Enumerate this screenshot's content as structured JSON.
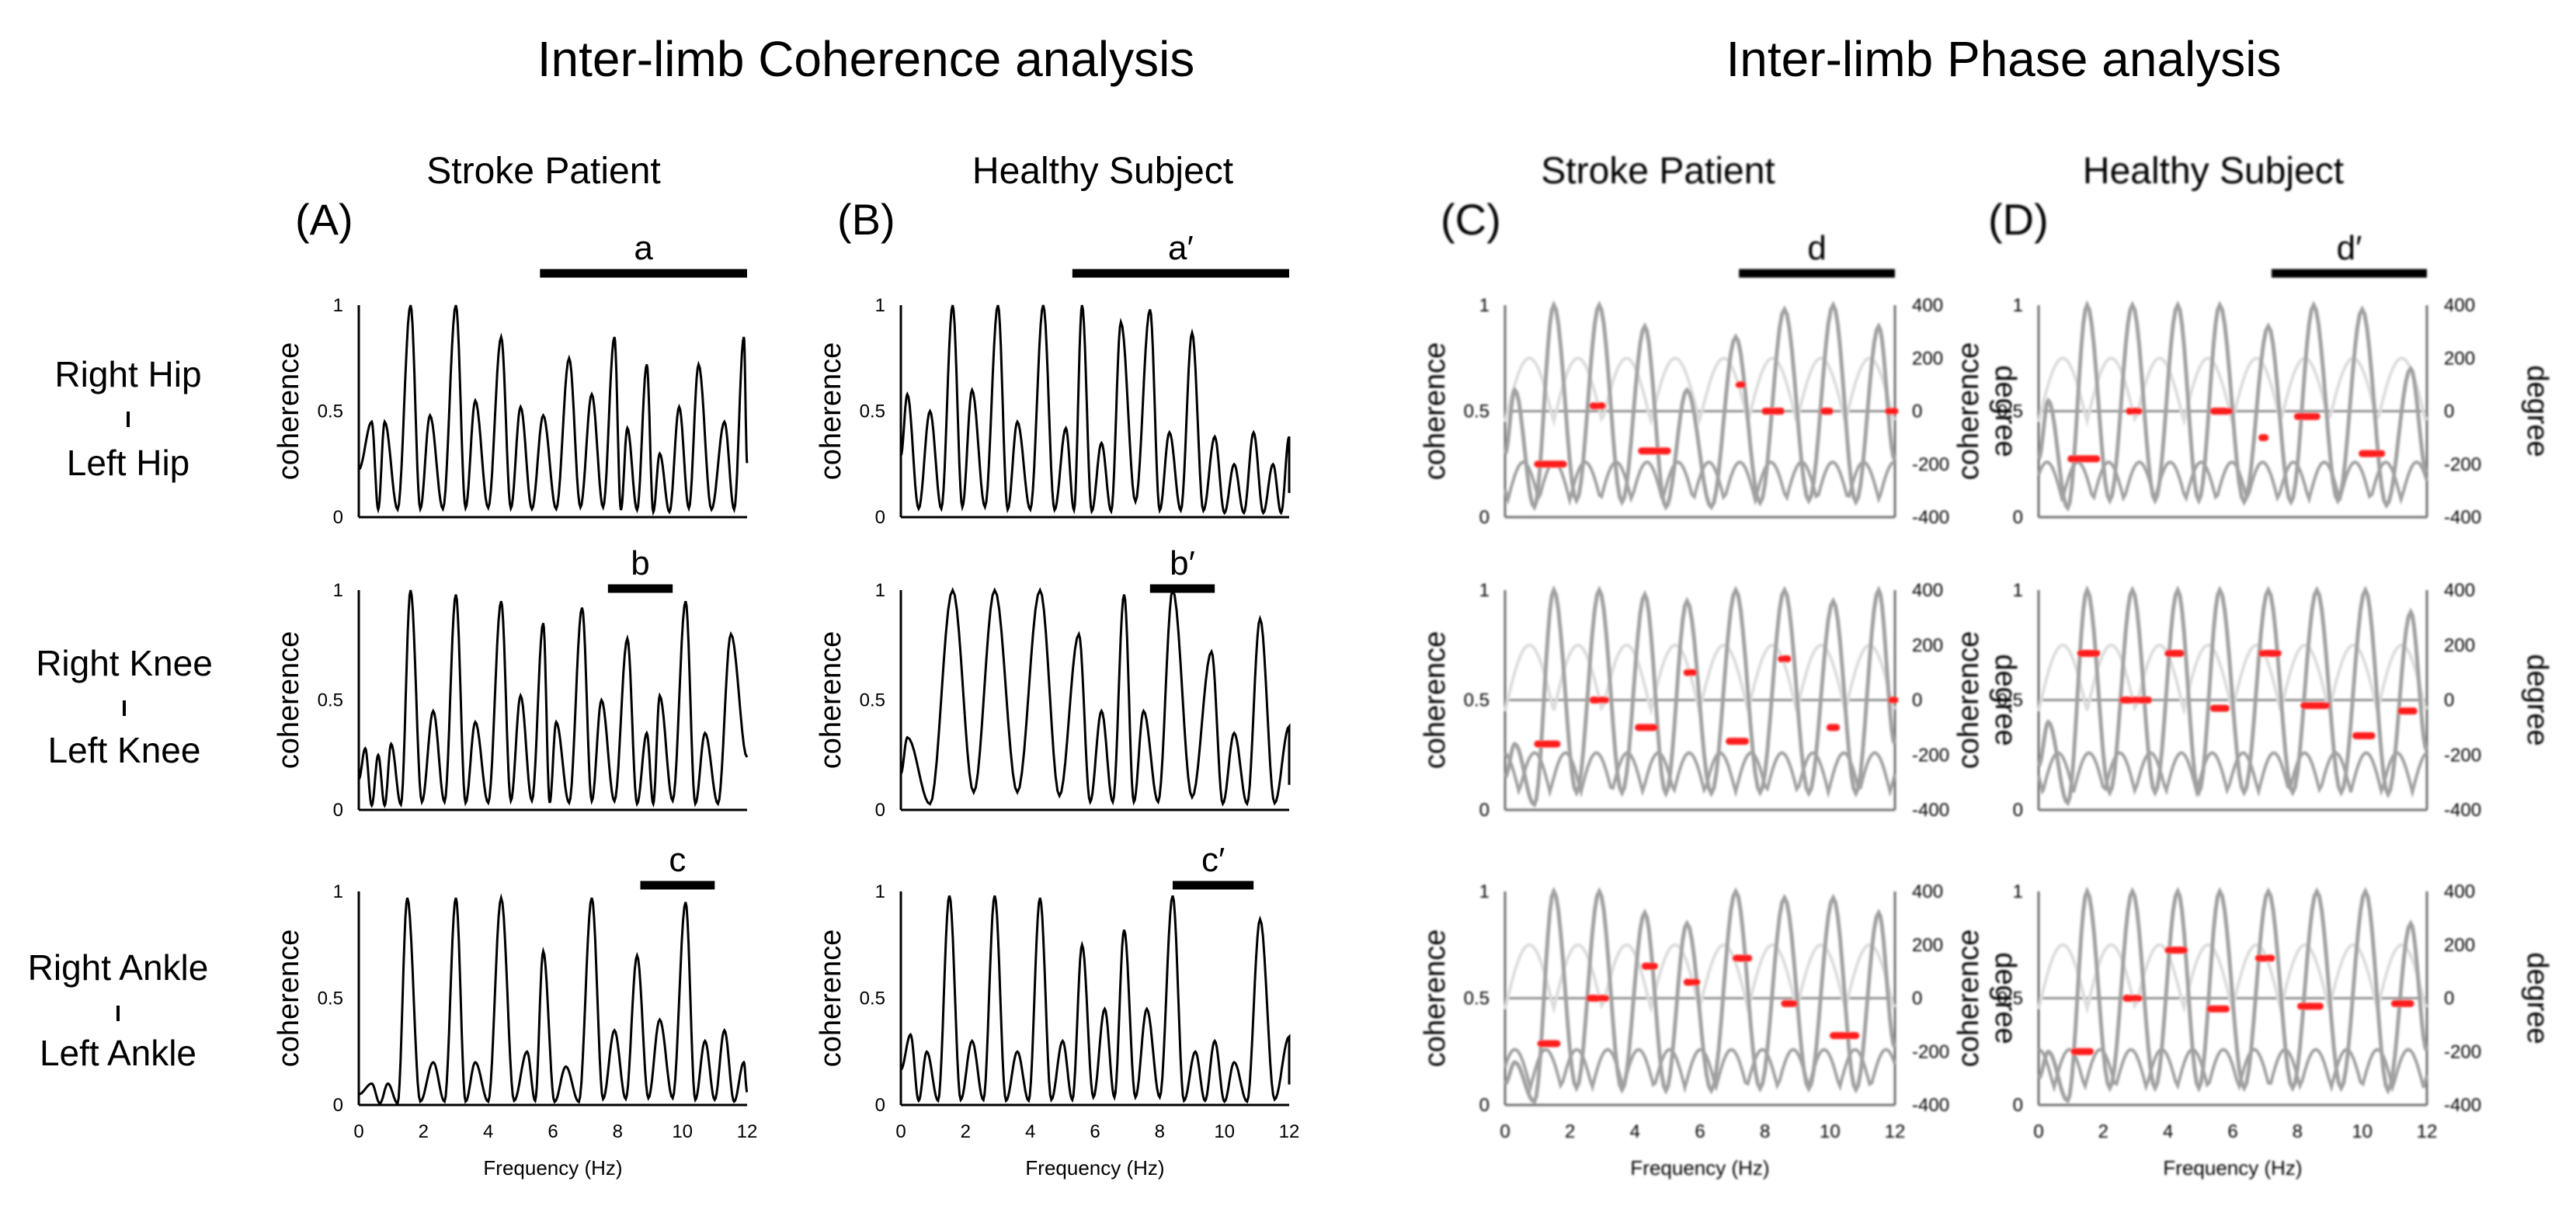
{
  "titles": {
    "left": "Inter-limb Coherence analysis",
    "right": "Inter-limb Phase analysis"
  },
  "columns": [
    {
      "label": "Stroke Patient",
      "panel": "(A)"
    },
    {
      "label": "Healthy  Subject",
      "panel": "(B)"
    },
    {
      "label": "Stroke Patient",
      "panel": "(C)"
    },
    {
      "label": "Healthy  Subject",
      "panel": "(D)"
    }
  ],
  "rows": [
    {
      "top": "Right Hip",
      "bottom": "Left Hip"
    },
    {
      "top": "Right Knee",
      "bottom": "Left Knee"
    },
    {
      "top": "Right Ankle",
      "bottom": "Left Ankle"
    }
  ],
  "axes": {
    "ylabel": "coherence",
    "y2label": "degree",
    "xlabel": "Frequency (Hz)",
    "xticks": [
      "0",
      "2",
      "4",
      "6",
      "8",
      "10",
      "12"
    ],
    "yticks": [
      "0",
      "0.5",
      "1"
    ],
    "y2ticks": [
      "400",
      "200",
      "0",
      "-200",
      "-400"
    ]
  },
  "colors": {
    "coherence_line": "#000000",
    "phase_coherence_line": "#a0a0a0",
    "phase_light_line": "#dcdcdc",
    "phase_segments": "#ff1a1a",
    "reference_line": "#909090"
  },
  "chart_data": {
    "type": "line",
    "xlim": [
      0,
      12
    ],
    "ylim": [
      0,
      1
    ],
    "y2lim": [
      -400,
      400
    ],
    "panels": [
      {
        "id": "A",
        "row": 0,
        "bar": {
          "label": "a",
          "x": [
            5.6,
            12
          ]
        },
        "peaks": [
          [
            0.4,
            0.45
          ],
          [
            0.8,
            0.45
          ],
          [
            1.6,
            1.0
          ],
          [
            2.2,
            0.48
          ],
          [
            3.0,
            1.0
          ],
          [
            3.6,
            0.55
          ],
          [
            4.4,
            0.85
          ],
          [
            5.0,
            0.52
          ],
          [
            5.7,
            0.48
          ],
          [
            6.5,
            0.75
          ],
          [
            7.2,
            0.58
          ],
          [
            7.9,
            0.85
          ],
          [
            8.3,
            0.42
          ],
          [
            8.9,
            0.72
          ],
          [
            9.3,
            0.3
          ],
          [
            9.9,
            0.52
          ],
          [
            10.5,
            0.72
          ],
          [
            11.3,
            0.45
          ],
          [
            11.9,
            0.85
          ]
        ]
      },
      {
        "id": "B",
        "row": 0,
        "bar": {
          "label": "a'",
          "x": [
            5.3,
            12
          ]
        },
        "peaks": [
          [
            0.2,
            0.58
          ],
          [
            0.9,
            0.5
          ],
          [
            1.6,
            1.0
          ],
          [
            2.2,
            0.6
          ],
          [
            3.0,
            1.0
          ],
          [
            3.6,
            0.45
          ],
          [
            4.4,
            1.0
          ],
          [
            5.1,
            0.42
          ],
          [
            5.6,
            1.0
          ],
          [
            6.2,
            0.35
          ],
          [
            6.8,
            0.92
          ],
          [
            7.7,
            0.98
          ],
          [
            8.3,
            0.4
          ],
          [
            9.0,
            0.87
          ],
          [
            9.7,
            0.38
          ],
          [
            10.3,
            0.25
          ],
          [
            10.9,
            0.4
          ],
          [
            11.5,
            0.25
          ],
          [
            12,
            0.38
          ]
        ]
      },
      {
        "id": "A",
        "row": 1,
        "bar": {
          "label": "b",
          "x": [
            7.7,
            9.7
          ]
        },
        "peaks": [
          [
            0.2,
            0.28
          ],
          [
            0.6,
            0.25
          ],
          [
            1.0,
            0.3
          ],
          [
            1.6,
            1.0
          ],
          [
            2.3,
            0.45
          ],
          [
            3.0,
            0.98
          ],
          [
            3.6,
            0.4
          ],
          [
            4.4,
            0.95
          ],
          [
            5.0,
            0.52
          ],
          [
            5.7,
            0.85
          ],
          [
            6.1,
            0.4
          ],
          [
            6.9,
            0.92
          ],
          [
            7.5,
            0.5
          ],
          [
            8.3,
            0.78
          ],
          [
            8.9,
            0.35
          ],
          [
            9.3,
            0.52
          ],
          [
            10.1,
            0.95
          ],
          [
            10.7,
            0.35
          ],
          [
            11.5,
            0.8
          ]
        ]
      },
      {
        "id": "B",
        "row": 1,
        "bar": {
          "label": "b'",
          "x": [
            7.7,
            9.7
          ]
        },
        "peaks": [
          [
            0.2,
            0.33
          ],
          [
            1.6,
            1.0
          ],
          [
            2.9,
            1.0
          ],
          [
            4.3,
            1.0
          ],
          [
            5.5,
            0.8
          ],
          [
            6.2,
            0.45
          ],
          [
            6.9,
            0.98
          ],
          [
            7.5,
            0.45
          ],
          [
            8.4,
            1.0
          ],
          [
            9.6,
            0.72
          ],
          [
            10.3,
            0.35
          ],
          [
            11.1,
            0.87
          ],
          [
            12,
            0.38
          ]
        ]
      },
      {
        "id": "A",
        "row": 2,
        "bar": {
          "label": "c",
          "x": [
            8.7,
            11
          ]
        },
        "peaks": [
          [
            0.4,
            0.1
          ],
          [
            0.9,
            0.1
          ],
          [
            1.5,
            0.97
          ],
          [
            2.3,
            0.2
          ],
          [
            3.0,
            0.97
          ],
          [
            3.6,
            0.2
          ],
          [
            4.4,
            0.97
          ],
          [
            5.2,
            0.25
          ],
          [
            5.7,
            0.72
          ],
          [
            6.4,
            0.18
          ],
          [
            7.2,
            0.97
          ],
          [
            7.9,
            0.35
          ],
          [
            8.6,
            0.7
          ],
          [
            9.3,
            0.4
          ],
          [
            10.1,
            0.95
          ],
          [
            10.7,
            0.3
          ],
          [
            11.3,
            0.35
          ],
          [
            11.9,
            0.2
          ]
        ]
      },
      {
        "id": "B",
        "row": 2,
        "bar": {
          "label": "c'",
          "x": [
            8.4,
            10.9
          ]
        },
        "peaks": [
          [
            0.3,
            0.33
          ],
          [
            0.8,
            0.25
          ],
          [
            1.5,
            0.98
          ],
          [
            2.2,
            0.3
          ],
          [
            2.9,
            0.98
          ],
          [
            3.6,
            0.25
          ],
          [
            4.3,
            0.97
          ],
          [
            5.0,
            0.3
          ],
          [
            5.6,
            0.75
          ],
          [
            6.3,
            0.45
          ],
          [
            6.9,
            0.82
          ],
          [
            7.6,
            0.45
          ],
          [
            8.4,
            0.98
          ],
          [
            9.1,
            0.25
          ],
          [
            9.7,
            0.3
          ],
          [
            10.3,
            0.2
          ],
          [
            11.1,
            0.87
          ],
          [
            12,
            0.32
          ]
        ]
      },
      {
        "id": "C",
        "row": 0,
        "bar": {
          "label": "d",
          "x": [
            7.2,
            12
          ]
        },
        "peaks": [
          [
            0.3,
            0.6
          ],
          [
            1.5,
            1.0
          ],
          [
            2.9,
            1.0
          ],
          [
            4.3,
            0.9
          ],
          [
            5.6,
            0.6
          ],
          [
            7.1,
            0.85
          ],
          [
            8.6,
            0.98
          ],
          [
            10.1,
            1.0
          ],
          [
            11.5,
            0.9
          ]
        ],
        "phase_segments": [
          [
            1.0,
            1.8,
            -200
          ],
          [
            2.7,
            3.0,
            20
          ],
          [
            4.2,
            5.0,
            -150
          ],
          [
            7.2,
            7.3,
            100
          ],
          [
            8.0,
            8.5,
            0
          ],
          [
            9.8,
            10.0,
            0
          ],
          [
            11.8,
            12,
            0
          ]
        ]
      },
      {
        "id": "D",
        "row": 0,
        "bar": {
          "label": "d'",
          "x": [
            7.2,
            12
          ]
        },
        "peaks": [
          [
            0.3,
            0.55
          ],
          [
            1.5,
            1.0
          ],
          [
            2.9,
            1.0
          ],
          [
            4.3,
            1.0
          ],
          [
            5.6,
            1.0
          ],
          [
            7.1,
            0.9
          ],
          [
            8.5,
            1.0
          ],
          [
            10.0,
            0.98
          ],
          [
            11.5,
            0.7
          ]
        ],
        "phase_segments": [
          [
            1.0,
            1.8,
            -180
          ],
          [
            2.8,
            3.1,
            0
          ],
          [
            5.4,
            5.9,
            0
          ],
          [
            6.9,
            7.0,
            -100
          ],
          [
            8.0,
            8.6,
            -20
          ],
          [
            10.0,
            10.6,
            -160
          ]
        ]
      },
      {
        "id": "C",
        "row": 1,
        "peaks": [
          [
            0.3,
            0.3
          ],
          [
            1.5,
            1.0
          ],
          [
            2.9,
            1.0
          ],
          [
            4.3,
            0.98
          ],
          [
            5.6,
            0.95
          ],
          [
            7.1,
            1.0
          ],
          [
            8.6,
            1.0
          ],
          [
            10.1,
            0.95
          ],
          [
            11.5,
            1.0
          ]
        ],
        "phase_segments": [
          [
            1.0,
            1.6,
            -160
          ],
          [
            2.7,
            3.1,
            0
          ],
          [
            4.1,
            4.6,
            -100
          ],
          [
            5.6,
            5.8,
            100
          ],
          [
            6.9,
            7.4,
            -150
          ],
          [
            8.5,
            8.7,
            150
          ],
          [
            10.0,
            10.2,
            -100
          ],
          [
            11.9,
            12,
            0
          ]
        ]
      },
      {
        "id": "D",
        "row": 1,
        "peaks": [
          [
            0.3,
            0.4
          ],
          [
            1.5,
            1.0
          ],
          [
            2.9,
            1.0
          ],
          [
            4.3,
            1.0
          ],
          [
            5.6,
            1.0
          ],
          [
            7.1,
            1.0
          ],
          [
            8.6,
            1.0
          ],
          [
            10.1,
            1.0
          ],
          [
            11.5,
            0.9
          ]
        ],
        "phase_segments": [
          [
            1.3,
            1.8,
            170
          ],
          [
            2.6,
            3.4,
            0
          ],
          [
            4.0,
            4.4,
            170
          ],
          [
            5.4,
            5.8,
            -30
          ],
          [
            6.9,
            7.4,
            170
          ],
          [
            8.2,
            8.9,
            -20
          ],
          [
            9.8,
            10.3,
            -130
          ],
          [
            11.2,
            11.6,
            -40
          ]
        ]
      },
      {
        "id": "C",
        "row": 2,
        "peaks": [
          [
            0.3,
            0.2
          ],
          [
            1.5,
            1.0
          ],
          [
            2.9,
            1.0
          ],
          [
            4.3,
            0.9
          ],
          [
            5.6,
            0.85
          ],
          [
            7.1,
            1.0
          ],
          [
            8.6,
            0.97
          ],
          [
            10.1,
            0.97
          ],
          [
            11.5,
            0.9
          ]
        ],
        "phase_segments": [
          [
            1.1,
            1.6,
            -170
          ],
          [
            2.6,
            3.1,
            0
          ],
          [
            4.3,
            4.6,
            120
          ],
          [
            5.6,
            5.9,
            60
          ],
          [
            7.1,
            7.5,
            150
          ],
          [
            8.6,
            8.9,
            -20
          ],
          [
            10.1,
            10.8,
            -140
          ]
        ]
      },
      {
        "id": "D",
        "row": 2,
        "peaks": [
          [
            0.3,
            0.25
          ],
          [
            1.5,
            1.0
          ],
          [
            2.9,
            1.0
          ],
          [
            4.3,
            1.0
          ],
          [
            5.6,
            1.0
          ],
          [
            7.1,
            1.0
          ],
          [
            8.6,
            1.0
          ],
          [
            10.1,
            1.0
          ],
          [
            11.5,
            0.85
          ]
        ],
        "phase_segments": [
          [
            1.1,
            1.6,
            -200
          ],
          [
            2.7,
            3.1,
            0
          ],
          [
            4.0,
            4.5,
            180
          ],
          [
            5.3,
            5.8,
            -40
          ],
          [
            6.8,
            7.2,
            150
          ],
          [
            8.1,
            8.7,
            -30
          ],
          [
            11.0,
            11.5,
            -20
          ]
        ]
      }
    ]
  }
}
